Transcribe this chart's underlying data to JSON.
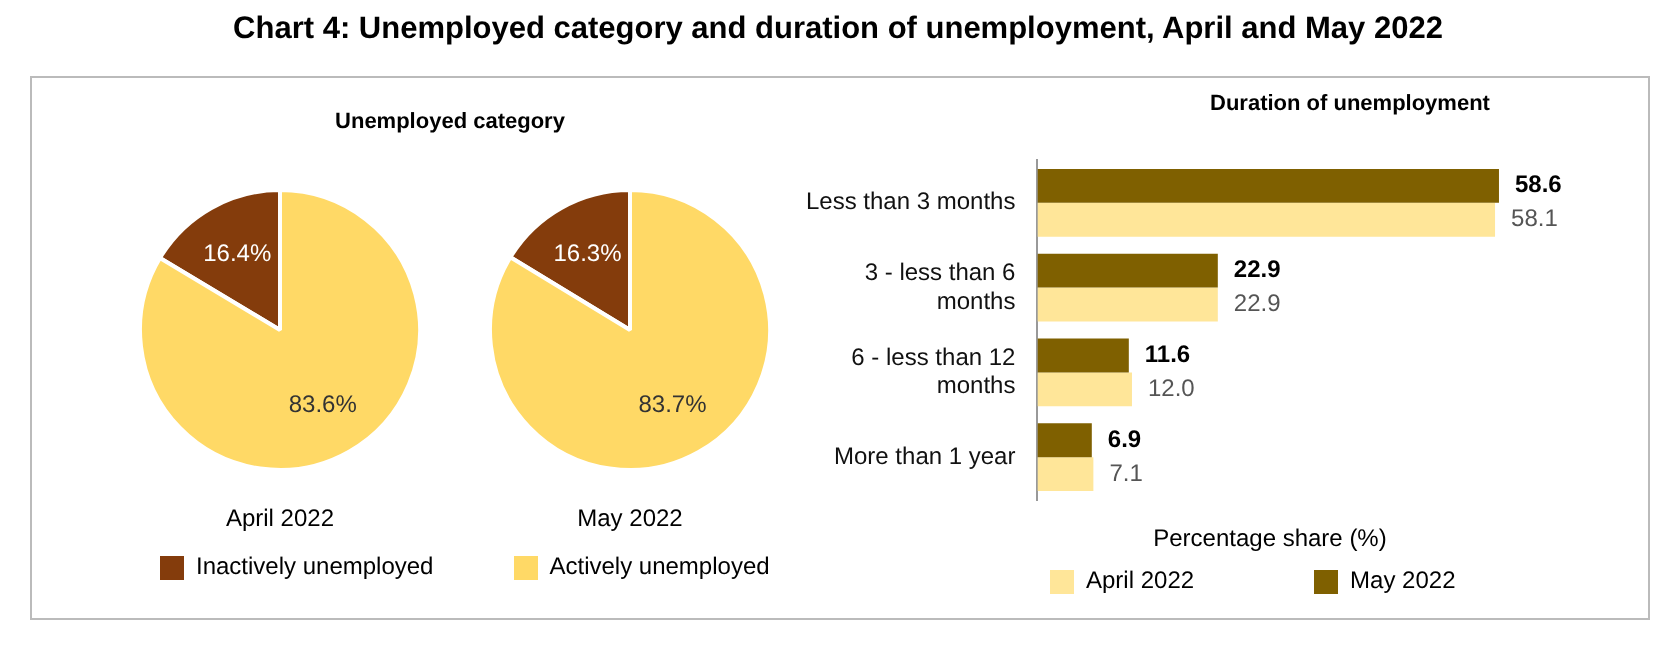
{
  "chart_data": [
    {
      "type": "pie",
      "title": "Chart 4: Unemployed category and duration of unemployment, April and May 2022",
      "subtitle": "Unemployed category",
      "xlabel": "April 2022",
      "categories": [
        "Inactively unemployed",
        "Actively unemployed"
      ],
      "values": [
        16.4,
        83.6
      ],
      "value_labels": [
        "16.4%",
        "83.6%"
      ],
      "colors": [
        "#843c0c",
        "#ffd966"
      ],
      "legend": "bottom"
    },
    {
      "type": "pie",
      "xlabel": "May 2022",
      "categories": [
        null,
        null
      ],
      "values": [
        16.3,
        83.7
      ],
      "value_labels": [
        "16.3%",
        "83.7%"
      ],
      "colors": [
        "#843c0c",
        "#ffd966"
      ]
    },
    {
      "type": "bar",
      "orientation": "horizontal",
      "title": "Duration of unemployment",
      "xlabel": "Percentage share (%)",
      "categories": [
        "Less than 3 months",
        "3 - less than 6 months",
        "6 - less than 12 months",
        "More than 1 year"
      ],
      "series": [
        {
          "name": "April 2022",
          "color": "#ffe699",
          "values": [
            58.1,
            22.9,
            12.0,
            7.1
          ],
          "value_labels": [
            "58.1",
            "22.9",
            "12.0",
            "7.1"
          ]
        },
        {
          "name": "May 2022",
          "color": "#7f6000",
          "values": [
            58.6,
            22.9,
            11.6,
            6.9
          ],
          "value_labels": [
            "58.6",
            "22.9",
            "11.6",
            "6.9"
          ]
        }
      ],
      "tick_labels": "y",
      "grid": false,
      "legend": "bottom"
    }
  ]
}
